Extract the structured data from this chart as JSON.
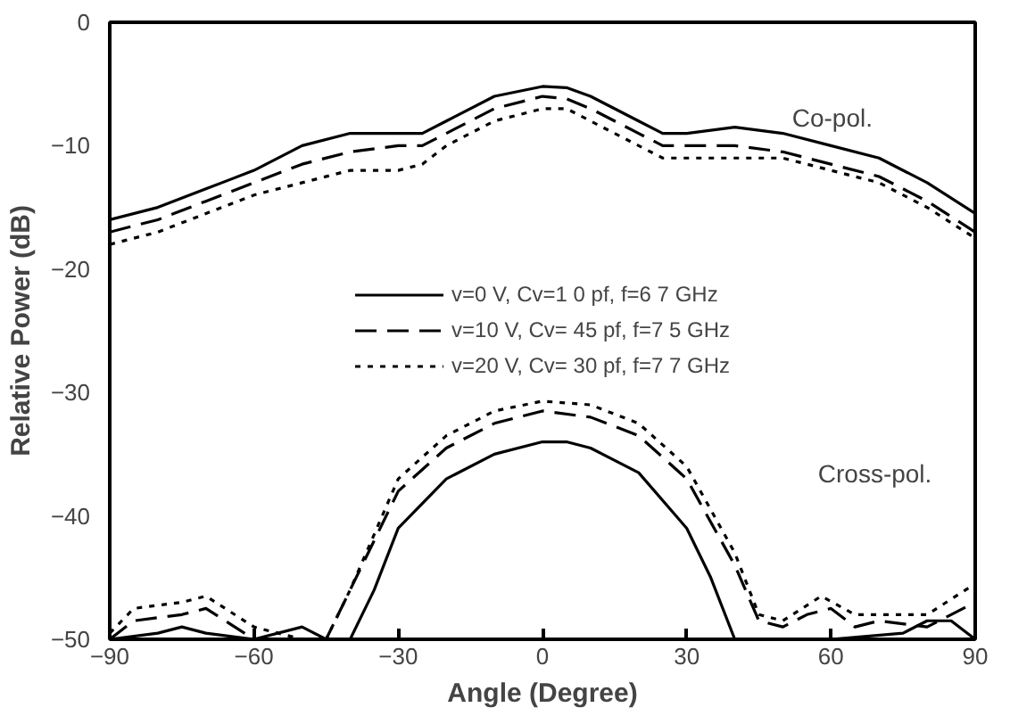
{
  "chart_data": {
    "type": "line",
    "xlabel": "Angle (Degree)",
    "ylabel": "Relative Power (dB)",
    "xlim": [
      -90,
      90
    ],
    "ylim": [
      -50,
      0
    ],
    "xticks": [
      -90,
      -60,
      -30,
      0,
      30,
      60,
      90
    ],
    "yticks": [
      -50,
      -40,
      -30,
      -20,
      -10,
      0
    ],
    "grid": false,
    "legend": "center",
    "annotations": [
      "Co-pol.",
      "Cross-pol."
    ],
    "series": [
      {
        "name": "v=0 V, Cv=1 0 pf, f=6 7 GHz",
        "color": "#000000",
        "line_style": "solid",
        "x": [
          -90,
          -80,
          -70,
          -60,
          -50,
          -40,
          -30,
          -25,
          -20,
          -10,
          0,
          5,
          10,
          20,
          25,
          30,
          40,
          50,
          60,
          70,
          80,
          90
        ],
        "values": [
          -16,
          -15,
          -13.5,
          -12,
          -10,
          -9,
          -9,
          -9,
          -8,
          -6,
          -5.2,
          -5.3,
          -6,
          -8,
          -9,
          -9,
          -8.5,
          -9,
          -10,
          -11,
          -13,
          -15.5
        ]
      },
      {
        "name": "v=10 V, Cv= 45 pf, f=7 5 GHz",
        "color": "#000000",
        "line_style": "dashed",
        "x": [
          -90,
          -80,
          -70,
          -60,
          -50,
          -40,
          -30,
          -25,
          -20,
          -10,
          0,
          5,
          10,
          20,
          25,
          30,
          40,
          50,
          60,
          70,
          80,
          90
        ],
        "values": [
          -17,
          -16,
          -14.5,
          -13,
          -11.5,
          -10.5,
          -10,
          -10,
          -9,
          -7,
          -6,
          -6.2,
          -7,
          -9,
          -10,
          -10,
          -10,
          -10.5,
          -11.5,
          -12.5,
          -14.5,
          -17
        ]
      },
      {
        "name": "v=20 V, Cv= 30 pf, f=7 7 GHz",
        "color": "#000000",
        "line_style": "dotted",
        "x": [
          -90,
          -80,
          -70,
          -60,
          -50,
          -40,
          -30,
          -25,
          -20,
          -10,
          0,
          5,
          10,
          20,
          25,
          30,
          40,
          50,
          60,
          70,
          80,
          90
        ],
        "values": [
          -18,
          -17,
          -15.5,
          -14,
          -13,
          -12,
          -12,
          -11.5,
          -10,
          -8,
          -7,
          -7,
          -8,
          -10,
          -11,
          -11,
          -11,
          -11,
          -12,
          -13,
          -15,
          -17.5
        ]
      },
      {
        "color": "#000000",
        "line_style": "solid",
        "x": [
          -90,
          -80,
          -75,
          -70,
          -60,
          -50,
          -45,
          -40,
          -35,
          -30,
          -20,
          -10,
          0,
          5,
          10,
          20,
          30,
          35,
          40,
          45,
          60,
          75,
          80,
          85,
          90
        ],
        "values": [
          -50,
          -49.5,
          -49,
          -49.5,
          -50,
          -49,
          -50,
          -50,
          -46,
          -41,
          -37,
          -35,
          -34,
          -34,
          -34.5,
          -36.5,
          -41,
          -45,
          -50,
          -50,
          -50,
          -49.5,
          -48.5,
          -48.5,
          -50
        ]
      },
      {
        "color": "#000000",
        "line_style": "dashed",
        "x": [
          -90,
          -85,
          -75,
          -70,
          -60,
          -50,
          -45,
          -40,
          -30,
          -20,
          -10,
          0,
          10,
          20,
          30,
          40,
          45,
          50,
          55,
          60,
          65,
          70,
          80,
          90
        ],
        "values": [
          -50,
          -48.5,
          -48,
          -47.5,
          -50,
          -50,
          -50,
          -46,
          -38,
          -34.5,
          -32.5,
          -31.5,
          -32,
          -33.5,
          -37,
          -44,
          -48.5,
          -49,
          -48,
          -47.5,
          -49,
          -48.5,
          -49,
          -47
        ]
      },
      {
        "color": "#000000",
        "line_style": "dotted",
        "x": [
          -90,
          -85,
          -75,
          -70,
          -60,
          -50,
          -45,
          -40,
          -30,
          -20,
          -10,
          0,
          10,
          20,
          30,
          40,
          45,
          50,
          58,
          65,
          75,
          80,
          90
        ],
        "values": [
          -49.5,
          -47.5,
          -47,
          -46.5,
          -49,
          -50,
          -50,
          -46,
          -37,
          -33.5,
          -31.5,
          -30.7,
          -31,
          -32.5,
          -36,
          -43,
          -48,
          -48.5,
          -46.5,
          -48,
          -48,
          -48,
          -45.5
        ]
      }
    ]
  }
}
